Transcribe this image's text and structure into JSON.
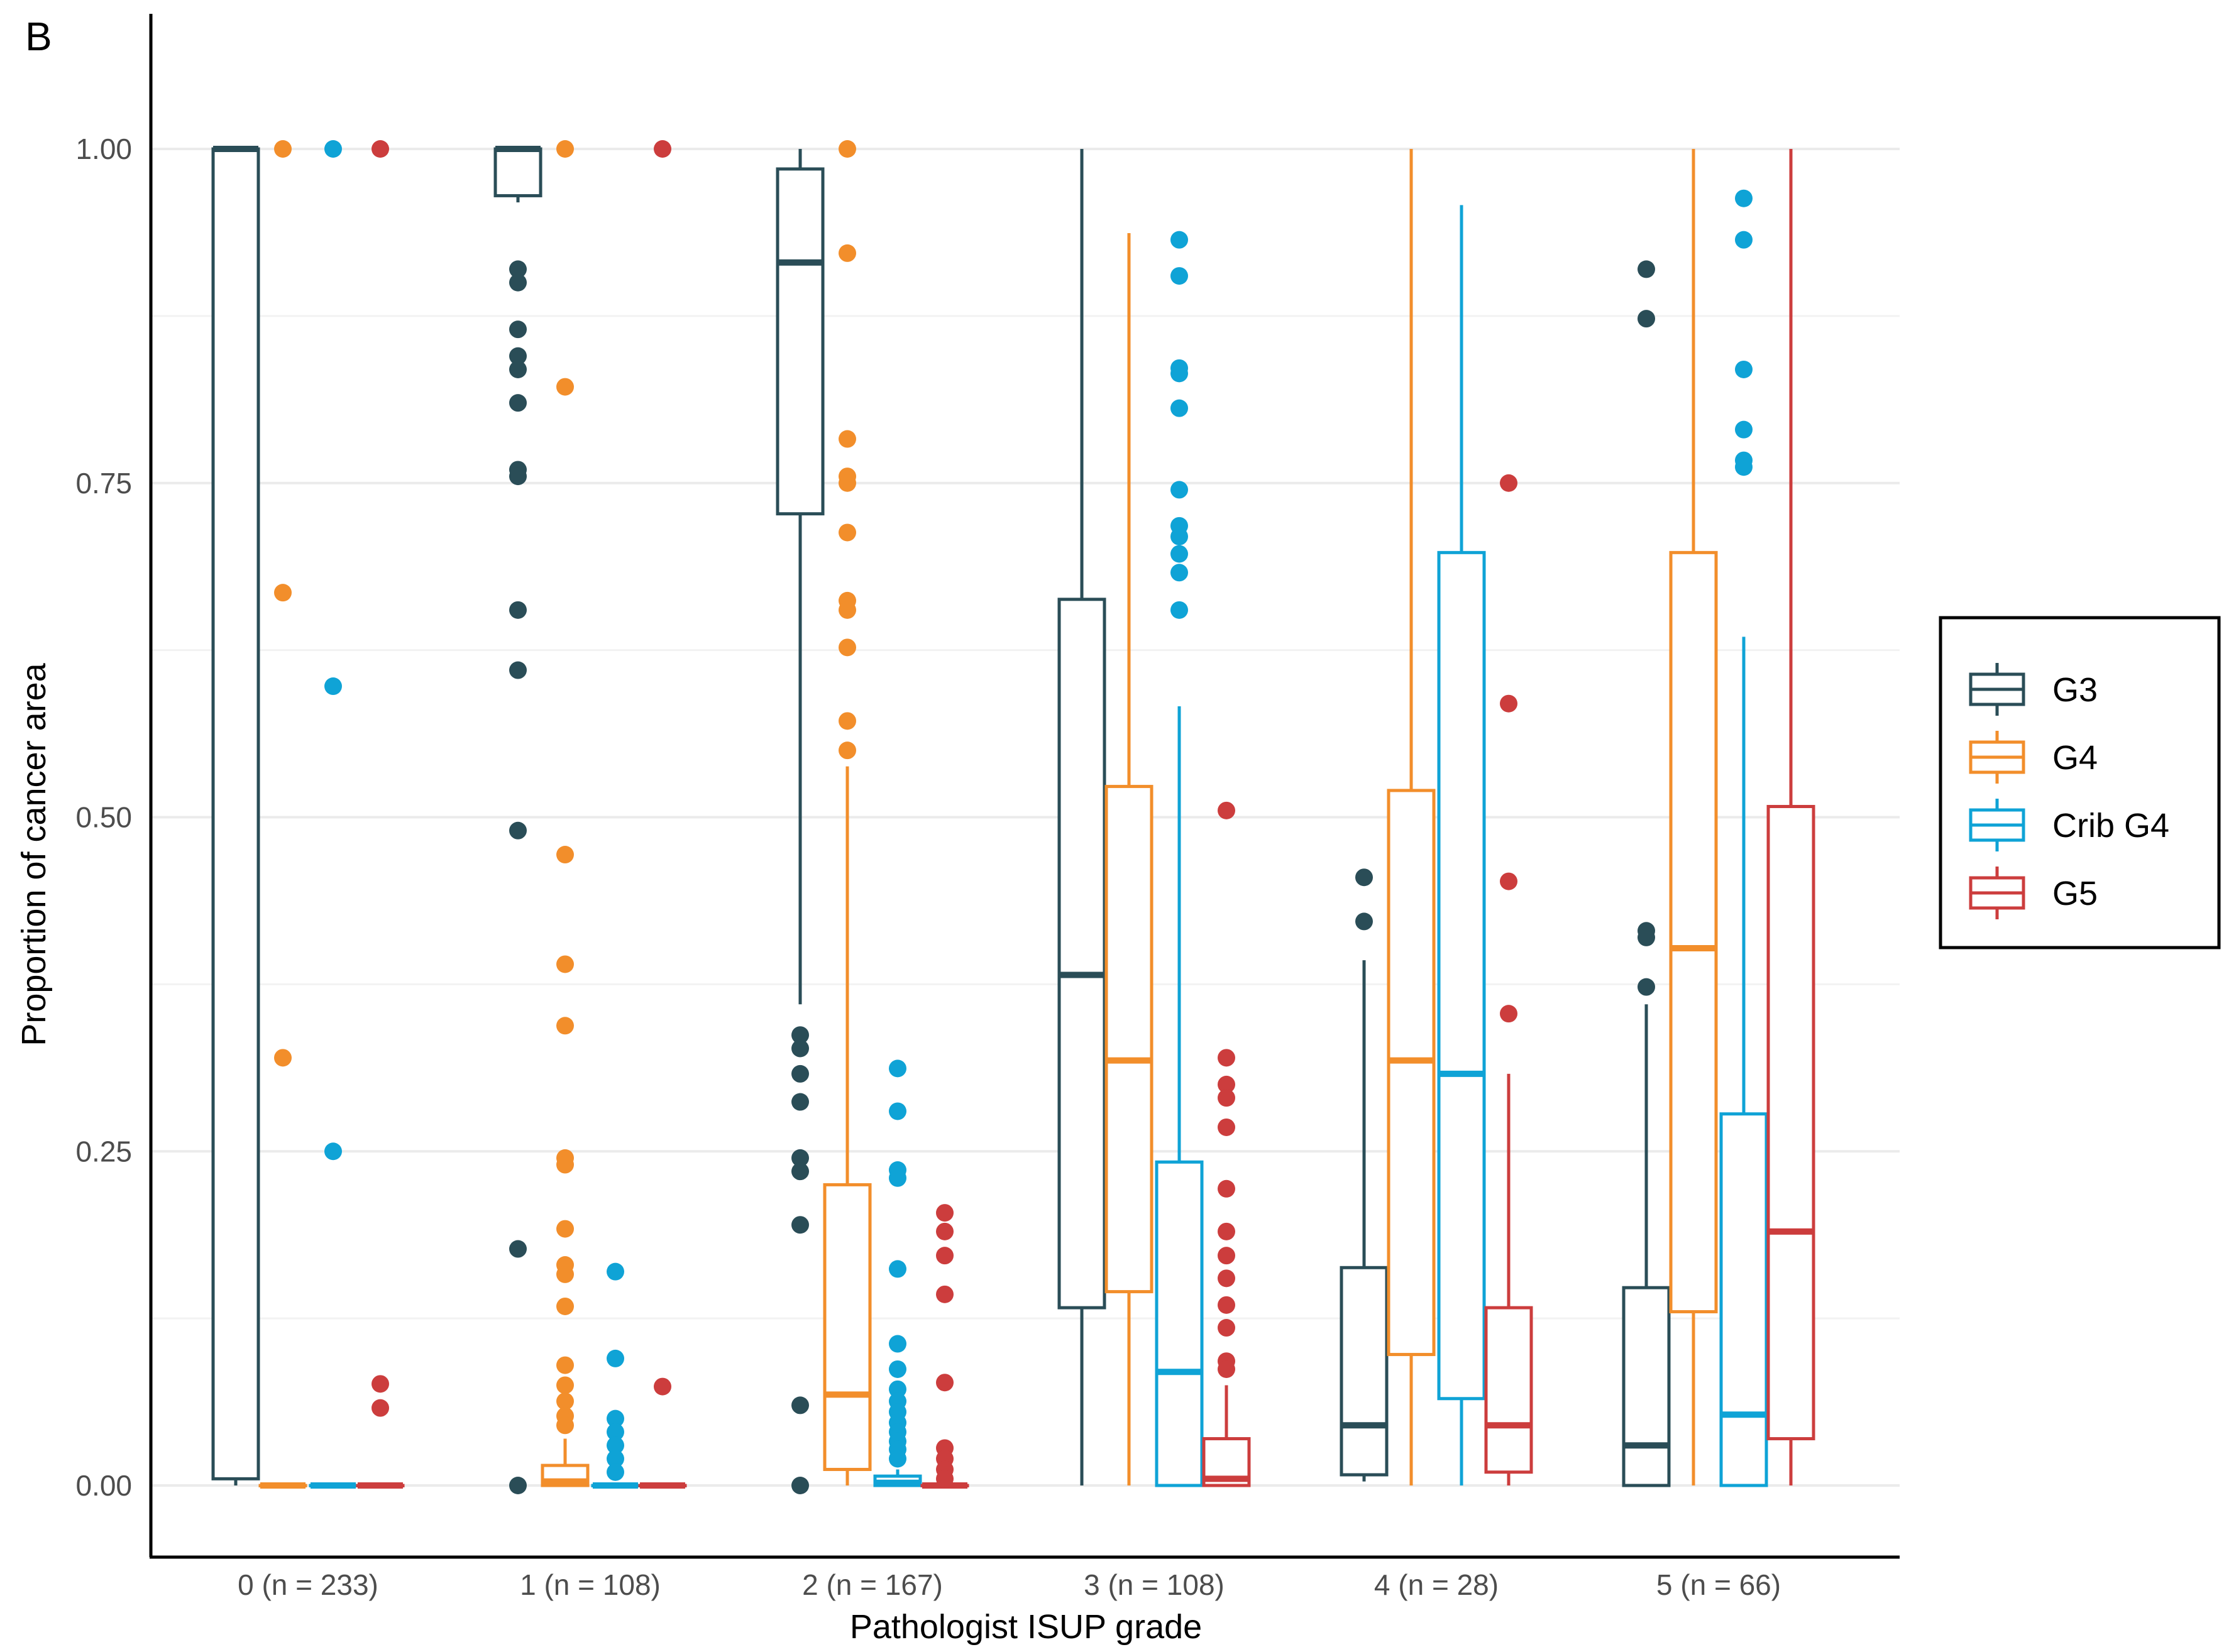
{
  "panel_label": "B",
  "chart_data": {
    "type": "boxplot",
    "xlabel": "Pathologist ISUP grade",
    "ylabel": "Proportion of cancer area",
    "ylim": [
      0,
      1
    ],
    "yticks": [
      "0.00",
      "0.25",
      "0.50",
      "0.75",
      "1.00"
    ],
    "categories": [
      "0 (n = 233)",
      "1 (n = 108)",
      "2 (n = 167)",
      "3 (n = 108)",
      "4 (n = 28)",
      "5 (n = 66)"
    ],
    "grid": true,
    "legend_position": "right",
    "series": [
      {
        "name": "G3",
        "color": "#2a4d57",
        "boxes": [
          {
            "min": 0.0,
            "q1": 0.005,
            "median": 1.0,
            "q3": 1.0,
            "max": 1.0,
            "outliers": []
          },
          {
            "min": 0.96,
            "q1": 0.965,
            "median": 1.0,
            "q3": 1.0,
            "max": 1.0,
            "outliers": [
              0.91,
              0.9,
              0.865,
              0.845,
              0.835,
              0.81,
              0.76,
              0.755,
              0.655,
              0.61,
              0.49,
              0.177,
              0.0
            ]
          },
          {
            "min": 0.36,
            "q1": 0.727,
            "median": 0.915,
            "q3": 0.985,
            "max": 1.0,
            "outliers": [
              0.337,
              0.327,
              0.308,
              0.287,
              0.245,
              0.235,
              0.195,
              0.06,
              0.0
            ]
          },
          {
            "min": 0.0,
            "q1": 0.133,
            "median": 0.382,
            "q3": 0.663,
            "max": 1.0,
            "outliers": []
          },
          {
            "min": 0.003,
            "q1": 0.008,
            "median": 0.045,
            "q3": 0.163,
            "max": 0.393,
            "outliers": [
              0.455,
              0.422
            ]
          },
          {
            "min": 0.0,
            "q1": 0.0,
            "median": 0.03,
            "q3": 0.148,
            "max": 0.36,
            "outliers": [
              0.91,
              0.873,
              0.415,
              0.41,
              0.373
            ]
          }
        ]
      },
      {
        "name": "G4",
        "color": "#f28e2b",
        "boxes": [
          {
            "min": 0.0,
            "q1": 0.0,
            "median": 0.0,
            "q3": 0.0,
            "max": 0.0,
            "outliers": [
              1.0,
              0.668,
              0.32
            ]
          },
          {
            "min": 0.0,
            "q1": 0.0,
            "median": 0.003,
            "q3": 0.015,
            "max": 0.035,
            "outliers": [
              1.0,
              0.822,
              0.472,
              0.39,
              0.344,
              0.245,
              0.24,
              0.192,
              0.165,
              0.158,
              0.134,
              0.09,
              0.075,
              0.063,
              0.052,
              0.045
            ]
          },
          {
            "min": 0.0,
            "q1": 0.012,
            "median": 0.068,
            "q3": 0.225,
            "max": 0.538,
            "outliers": [
              1.0,
              0.922,
              0.783,
              0.755,
              0.75,
              0.713,
              0.662,
              0.655,
              0.627,
              0.572,
              0.55
            ]
          },
          {
            "min": 0.0,
            "q1": 0.145,
            "median": 0.318,
            "q3": 0.523,
            "max": 0.937,
            "outliers": []
          },
          {
            "min": 0.0,
            "q1": 0.098,
            "median": 0.318,
            "q3": 0.52,
            "max": 1.0,
            "outliers": []
          },
          {
            "min": 0.0,
            "q1": 0.13,
            "median": 0.402,
            "q3": 0.698,
            "max": 1.0,
            "outliers": []
          }
        ]
      },
      {
        "name": "Crib G4",
        "color": "#0fa3d6",
        "boxes": [
          {
            "min": 0.0,
            "q1": 0.0,
            "median": 0.0,
            "q3": 0.0,
            "max": 0.0,
            "outliers": [
              1.0,
              0.598,
              0.25
            ]
          },
          {
            "min": 0.0,
            "q1": 0.0,
            "median": 0.0,
            "q3": 0.0,
            "max": 0.0,
            "outliers": [
              0.16,
              0.095,
              0.05,
              0.04,
              0.03,
              0.02,
              0.01
            ]
          },
          {
            "min": 0.0,
            "q1": 0.0,
            "median": 0.002,
            "q3": 0.007,
            "max": 0.012,
            "outliers": [
              0.312,
              0.28,
              0.236,
              0.23,
              0.162,
              0.106,
              0.087,
              0.072,
              0.063,
              0.055,
              0.047,
              0.04,
              0.033,
              0.027,
              0.02
            ]
          },
          {
            "min": 0.0,
            "q1": 0.0,
            "median": 0.085,
            "q3": 0.242,
            "max": 0.583,
            "outliers": [
              0.932,
              0.905,
              0.836,
              0.832,
              0.806,
              0.745,
              0.718,
              0.71,
              0.697,
              0.683,
              0.655
            ]
          },
          {
            "min": 0.0,
            "q1": 0.065,
            "median": 0.308,
            "q3": 0.698,
            "max": 0.958,
            "outliers": []
          },
          {
            "min": 0.0,
            "q1": 0.0,
            "median": 0.053,
            "q3": 0.278,
            "max": 0.635,
            "outliers": [
              0.963,
              0.932,
              0.835,
              0.79,
              0.767,
              0.762
            ]
          }
        ]
      },
      {
        "name": "G5",
        "color": "#cc3d3d",
        "boxes": [
          {
            "min": 0.0,
            "q1": 0.0,
            "median": 0.0,
            "q3": 0.0,
            "max": 0.0,
            "outliers": [
              1.0,
              0.076,
              0.058
            ]
          },
          {
            "min": 0.0,
            "q1": 0.0,
            "median": 0.0,
            "q3": 0.0,
            "max": 0.0,
            "outliers": [
              1.0,
              0.074
            ]
          },
          {
            "min": 0.0,
            "q1": 0.0,
            "median": 0.0,
            "q3": 0.0,
            "max": 0.0,
            "outliers": [
              0.204,
              0.19,
              0.172,
              0.143,
              0.077,
              0.028,
              0.02,
              0.012,
              0.005
            ]
          },
          {
            "min": 0.0,
            "q1": 0.0,
            "median": 0.005,
            "q3": 0.035,
            "max": 0.075,
            "outliers": [
              0.505,
              0.32,
              0.3,
              0.29,
              0.268,
              0.222,
              0.19,
              0.172,
              0.155,
              0.135,
              0.118,
              0.093,
              0.087
            ]
          },
          {
            "min": 0.0,
            "q1": 0.01,
            "median": 0.045,
            "q3": 0.133,
            "max": 0.308,
            "outliers": [
              0.75,
              0.585,
              0.452,
              0.353
            ]
          },
          {
            "min": 0.0,
            "q1": 0.035,
            "median": 0.19,
            "q3": 0.508,
            "max": 1.0,
            "outliers": []
          }
        ]
      }
    ]
  }
}
